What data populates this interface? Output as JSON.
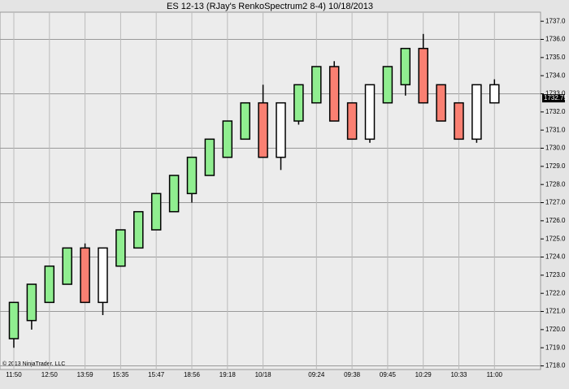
{
  "chart_data": {
    "type": "candlestick",
    "title": "ES 12-13 (RJay's RenkoSpectrum2  8-4)  10/18/2013",
    "copyright": "© 2013 NinjaTrader, LLC",
    "categories": [
      "11:50",
      null,
      "12:50",
      null,
      "13:59",
      null,
      "15:35",
      null,
      "15:47",
      null,
      "18:56",
      null,
      "19:18",
      null,
      "10/18",
      null,
      null,
      "09:24",
      null,
      "09:38",
      null,
      "09:45",
      null,
      "10:29",
      null,
      "10:33",
      null,
      "11:00"
    ],
    "open": [
      1719.5,
      1720.5,
      1721.5,
      1722.5,
      1724.5,
      1721.5,
      1723.5,
      1724.5,
      1725.5,
      1726.5,
      1727.5,
      1728.5,
      1729.5,
      1730.5,
      1732.5,
      1729.5,
      1731.5,
      1732.5,
      1734.5,
      1732.5,
      1730.5,
      1732.5,
      1733.5,
      1735.5,
      1733.5,
      1732.5,
      1730.5,
      1732.5
    ],
    "high": [
      1721.5,
      1722.5,
      1723.5,
      1724.5,
      1724.75,
      1724.5,
      1725.5,
      1726.5,
      1727.5,
      1728.5,
      1729.5,
      1730.5,
      1731.5,
      1732.5,
      1733.5,
      1732.5,
      1733.5,
      1734.5,
      1734.8,
      1732.5,
      1733.5,
      1734.5,
      1735.5,
      1736.3,
      1733.5,
      1732.5,
      1733.5,
      1733.8
    ],
    "low": [
      1719.0,
      1720.0,
      1721.5,
      1722.5,
      1721.5,
      1720.8,
      1723.5,
      1724.5,
      1725.5,
      1726.5,
      1727.0,
      1728.5,
      1729.5,
      1730.5,
      1729.5,
      1728.8,
      1731.3,
      1732.5,
      1731.5,
      1730.5,
      1730.3,
      1732.5,
      1732.9,
      1732.5,
      1731.5,
      1730.5,
      1730.3,
      1732.5
    ],
    "close": [
      1721.5,
      1722.5,
      1723.5,
      1724.5,
      1721.5,
      1724.5,
      1725.5,
      1726.5,
      1727.5,
      1728.5,
      1729.5,
      1730.5,
      1731.5,
      1732.5,
      1729.5,
      1732.5,
      1733.5,
      1734.5,
      1731.5,
      1730.5,
      1733.5,
      1734.5,
      1735.5,
      1732.5,
      1731.5,
      1730.5,
      1733.5,
      1733.5
    ],
    "colors": [
      "#90ee90",
      "#90ee90",
      "#90ee90",
      "#90ee90",
      "#fa8072",
      "#ffffff",
      "#90ee90",
      "#90ee90",
      "#90ee90",
      "#90ee90",
      "#90ee90",
      "#90ee90",
      "#90ee90",
      "#90ee90",
      "#fa8072",
      "#ffffff",
      "#90ee90",
      "#90ee90",
      "#fa8072",
      "#fa8072",
      "#ffffff",
      "#90ee90",
      "#90ee90",
      "#fa8072",
      "#fa8072",
      "#fa8072",
      "#ffffff",
      "#ffffff"
    ],
    "ylim": [
      1717.8,
      1737.5
    ],
    "yticks": [
      {
        "value": 1718,
        "label": "1718.0"
      },
      {
        "value": 1719,
        "label": "1719.0"
      },
      {
        "value": 1720,
        "label": "1720.0"
      },
      {
        "value": 1721,
        "label": "1721.0"
      },
      {
        "value": 1722,
        "label": "1722.0"
      },
      {
        "value": 1723,
        "label": "1723.0"
      },
      {
        "value": 1724,
        "label": "1724.0"
      },
      {
        "value": 1725,
        "label": "1725.0"
      },
      {
        "value": 1726,
        "label": "1726.0"
      },
      {
        "value": 1727,
        "label": "1727.0"
      },
      {
        "value": 1728,
        "label": "1728.0"
      },
      {
        "value": 1729,
        "label": "1729.0"
      },
      {
        "value": 1730,
        "label": "1730.0"
      },
      {
        "value": 1731,
        "label": "1731.0"
      },
      {
        "value": 1732,
        "label": "1732.0"
      },
      {
        "value": 1733,
        "label": "1733.0"
      },
      {
        "value": 1734,
        "label": "1734.0"
      },
      {
        "value": 1735,
        "label": "1735.0"
      },
      {
        "value": 1736,
        "label": "1736.0"
      },
      {
        "value": 1737,
        "label": "1737.0"
      }
    ],
    "ygrid": [
      1718,
      1721,
      1724,
      1727,
      1730,
      1733,
      1736
    ],
    "last_price": 1732.75
  }
}
